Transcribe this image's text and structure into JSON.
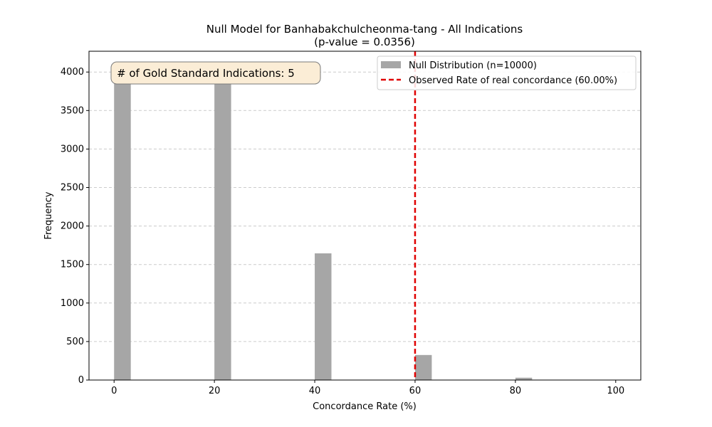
{
  "chart_data": {
    "type": "bar",
    "title": "Null Model for Banhabakchulcheonma-tang - All Indications",
    "subtitle": "(p-value = 0.0356)",
    "xlabel": "Concordance Rate (%)",
    "ylabel": "Frequency",
    "xlim": [
      -5,
      105
    ],
    "ylim": [
      0,
      4270
    ],
    "xticks": [
      0,
      20,
      40,
      60,
      80,
      100
    ],
    "yticks": [
      0,
      500,
      1000,
      1500,
      2000,
      2500,
      3000,
      3500,
      4000
    ],
    "grid": "y-dashed",
    "legend_position": "top-right",
    "bars": [
      {
        "x_start": 0,
        "x_end": 3.33,
        "value": 3940
      },
      {
        "x_start": 20,
        "x_end": 23.33,
        "value": 4060
      },
      {
        "x_start": 40,
        "x_end": 43.33,
        "value": 1645
      },
      {
        "x_start": 60,
        "x_end": 63.33,
        "value": 325
      },
      {
        "x_start": 80,
        "x_end": 83.33,
        "value": 30
      }
    ],
    "bar_color": "#a6a6a6",
    "observed_line": {
      "x": 60,
      "color": "#e00000"
    },
    "legend": {
      "null_label": "Null Distribution (n=10000)",
      "observed_label": "Observed Rate of real concordance (60.00%)"
    },
    "annotation": "# of Gold Standard Indications: 5"
  }
}
